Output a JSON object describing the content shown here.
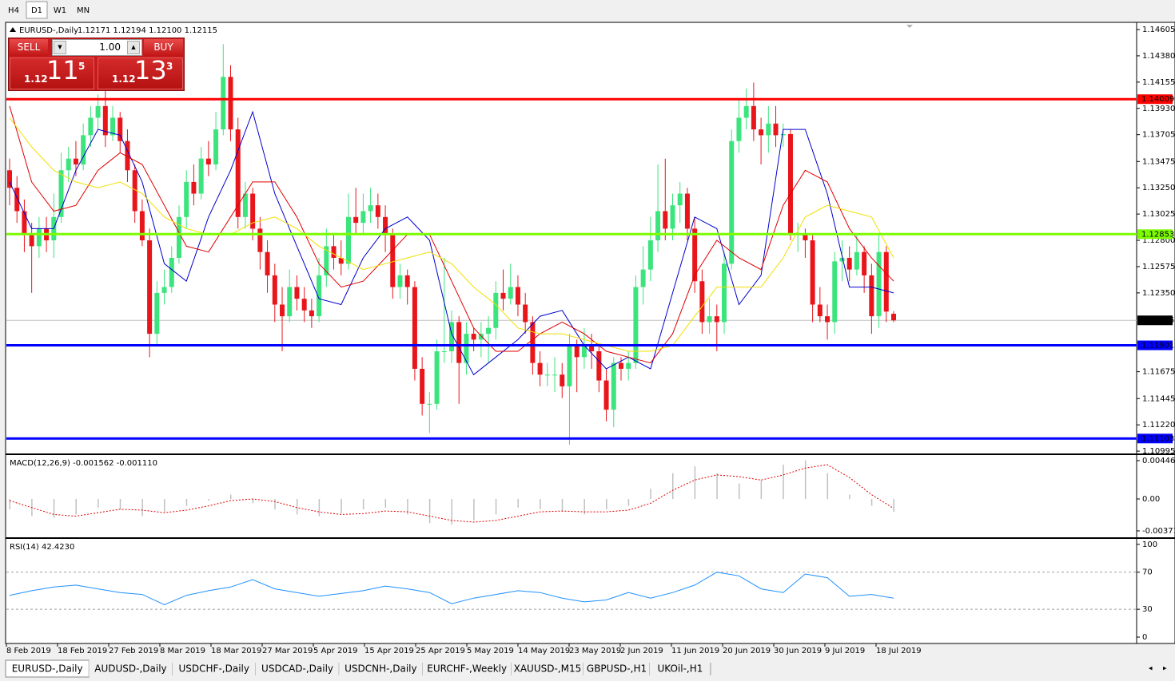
{
  "toolbar": {
    "buttons": [
      "H4",
      "D1",
      "W1",
      "MN"
    ],
    "active": "D1"
  },
  "trade_panel": {
    "sell": "SELL",
    "buy": "BUY",
    "lot": "1.00",
    "bid": {
      "big": "1.12",
      "main": "11",
      "small": "5"
    },
    "ask": {
      "big": "1.12",
      "main": "13",
      "small": "3"
    }
  },
  "chart_data": [
    {
      "type": "candlestick",
      "title": "EURUSD-,Daily",
      "ohlc_label": "1.12171 1.12194 1.12100 1.12115",
      "up_color": "#3ce47d",
      "down_color": "#e8151b",
      "ylim": [
        1.10975,
        1.14653
      ],
      "yticks": [
        1.14605,
        {
          "value": 1.1438,
          "label": "1.14380"
        },
        1.14155,
        {
          "value": 1.1393,
          "label": "1.13930"
        },
        1.13705,
        1.13475,
        {
          "value": 1.1325,
          "label": "1.13250"
        },
        1.13025,
        {
          "value": 1.128,
          "label": "1.12800"
        },
        1.12575,
        {
          "value": 1.1235,
          "label": "1.12350"
        },
        1.11675,
        1.11445,
        {
          "value": 1.1122,
          "label": "1.11220"
        },
        1.10995
      ],
      "levels": [
        {
          "value": 1.14009,
          "color": "#ff0000"
        },
        {
          "value": 1.12853,
          "color": "#7cfc00"
        },
        {
          "value": 1.11901,
          "color": "#0000ff"
        },
        {
          "value": 1.11103,
          "color": "#0000ff"
        }
      ],
      "current_price": 1.12115,
      "date_labels": [
        "8 Feb 2019",
        "18 Feb 2019",
        "27 Feb 2019",
        "8 Mar 2019",
        "18 Mar 2019",
        "27 Mar 2019",
        "5 Apr 2019",
        "15 Apr 2019",
        "25 Apr 2019",
        "5 May 2019",
        "14 May 2019",
        "23 May 2019",
        "2 Jun 2019",
        "11 Jun 2019",
        "20 Jun 2019",
        "30 Jun 2019",
        "9 Jul 2019",
        "18 Jul 2019"
      ],
      "ohlc": [
        [
          1.134,
          1.135,
          1.131,
          1.1325
        ],
        [
          1.1325,
          1.1335,
          1.1295,
          1.1305
        ],
        [
          1.1305,
          1.1315,
          1.127,
          1.1285
        ],
        [
          1.1285,
          1.1295,
          1.1235,
          1.1275
        ],
        [
          1.1275,
          1.13,
          1.1265,
          1.129
        ],
        [
          1.129,
          1.13,
          1.127,
          1.128
        ],
        [
          1.128,
          1.132,
          1.1265,
          1.13
        ],
        [
          1.13,
          1.1355,
          1.1295,
          1.134
        ],
        [
          1.134,
          1.136,
          1.133,
          1.135
        ],
        [
          1.135,
          1.1365,
          1.1335,
          1.1345
        ],
        [
          1.1345,
          1.138,
          1.134,
          1.137
        ],
        [
          1.137,
          1.1395,
          1.136,
          1.1385
        ],
        [
          1.1385,
          1.1405,
          1.1375,
          1.1395
        ],
        [
          1.1395,
          1.141,
          1.136,
          1.137
        ],
        [
          1.137,
          1.1395,
          1.1365,
          1.1385
        ],
        [
          1.1385,
          1.139,
          1.1355,
          1.1365
        ],
        [
          1.1365,
          1.1375,
          1.133,
          1.134
        ],
        [
          1.134,
          1.1345,
          1.1295,
          1.1305
        ],
        [
          1.1305,
          1.1315,
          1.1275,
          1.128
        ],
        [
          1.128,
          1.129,
          1.118,
          1.12
        ],
        [
          1.12,
          1.1245,
          1.119,
          1.1235
        ],
        [
          1.1235,
          1.1255,
          1.1225,
          1.124
        ],
        [
          1.124,
          1.1275,
          1.1235,
          1.1265
        ],
        [
          1.1265,
          1.131,
          1.126,
          1.13
        ],
        [
          1.13,
          1.134,
          1.129,
          1.133
        ],
        [
          1.133,
          1.1345,
          1.131,
          1.132
        ],
        [
          1.132,
          1.136,
          1.1315,
          1.135
        ],
        [
          1.135,
          1.1365,
          1.1335,
          1.1345
        ],
        [
          1.1345,
          1.139,
          1.134,
          1.1375
        ],
        [
          1.1375,
          1.1448,
          1.137,
          1.142
        ],
        [
          1.142,
          1.143,
          1.1365,
          1.1375
        ],
        [
          1.1375,
          1.1385,
          1.129,
          1.13
        ],
        [
          1.13,
          1.133,
          1.129,
          1.132
        ],
        [
          1.132,
          1.1325,
          1.128,
          1.129
        ],
        [
          1.129,
          1.13,
          1.1255,
          1.127
        ],
        [
          1.127,
          1.128,
          1.1235,
          1.125
        ],
        [
          1.125,
          1.126,
          1.121,
          1.1225
        ],
        [
          1.1225,
          1.124,
          1.1185,
          1.1215
        ],
        [
          1.1215,
          1.1255,
          1.121,
          1.124
        ],
        [
          1.124,
          1.125,
          1.122,
          1.123
        ],
        [
          1.123,
          1.124,
          1.121,
          1.122
        ],
        [
          1.122,
          1.123,
          1.1205,
          1.1215
        ],
        [
          1.1215,
          1.1265,
          1.121,
          1.125
        ],
        [
          1.125,
          1.129,
          1.124,
          1.1275
        ],
        [
          1.1275,
          1.1285,
          1.1255,
          1.1265
        ],
        [
          1.1265,
          1.128,
          1.125,
          1.126
        ],
        [
          1.126,
          1.132,
          1.1255,
          1.13
        ],
        [
          1.13,
          1.1325,
          1.1285,
          1.1295
        ],
        [
          1.1295,
          1.132,
          1.1285,
          1.1305
        ],
        [
          1.1305,
          1.1325,
          1.1295,
          1.131
        ],
        [
          1.131,
          1.132,
          1.129,
          1.13
        ],
        [
          1.13,
          1.131,
          1.127,
          1.1285
        ],
        [
          1.1285,
          1.129,
          1.123,
          1.124
        ],
        [
          1.124,
          1.126,
          1.123,
          1.125
        ],
        [
          1.125,
          1.1255,
          1.1225,
          1.124
        ],
        [
          1.124,
          1.1245,
          1.116,
          1.117
        ],
        [
          1.117,
          1.118,
          1.113,
          1.114
        ],
        [
          1.114,
          1.115,
          1.1115,
          1.114
        ],
        [
          1.114,
          1.1195,
          1.1135,
          1.1185
        ],
        [
          1.1185,
          1.1265,
          1.1175,
          1.1185
        ],
        [
          1.1185,
          1.122,
          1.1175,
          1.121
        ],
        [
          1.121,
          1.1215,
          1.114,
          1.1175
        ],
        [
          1.1175,
          1.121,
          1.1165,
          1.12
        ],
        [
          1.12,
          1.1205,
          1.1185,
          1.1195
        ],
        [
          1.1195,
          1.121,
          1.118,
          1.12
        ],
        [
          1.12,
          1.1215,
          1.1175,
          1.1205
        ],
        [
          1.1205,
          1.1245,
          1.1195,
          1.1235
        ],
        [
          1.1235,
          1.1255,
          1.122,
          1.123
        ],
        [
          1.123,
          1.126,
          1.1225,
          1.124
        ],
        [
          1.124,
          1.125,
          1.1215,
          1.1225
        ],
        [
          1.1225,
          1.1235,
          1.12,
          1.121
        ],
        [
          1.121,
          1.1215,
          1.1165,
          1.1175
        ],
        [
          1.1175,
          1.1185,
          1.1155,
          1.1165
        ],
        [
          1.1165,
          1.1175,
          1.1155,
          1.1165
        ],
        [
          1.1165,
          1.118,
          1.115,
          1.1165
        ],
        [
          1.1165,
          1.1175,
          1.1145,
          1.1155
        ],
        [
          1.1155,
          1.12,
          1.1105,
          1.119
        ],
        [
          1.119,
          1.1195,
          1.115,
          1.118
        ],
        [
          1.118,
          1.1205,
          1.117,
          1.119
        ],
        [
          1.119,
          1.12,
          1.117,
          1.1185
        ],
        [
          1.1185,
          1.119,
          1.115,
          1.116
        ],
        [
          1.116,
          1.117,
          1.1125,
          1.1135
        ],
        [
          1.1135,
          1.118,
          1.112,
          1.1175
        ],
        [
          1.1175,
          1.118,
          1.116,
          1.117
        ],
        [
          1.117,
          1.1185,
          1.116,
          1.1175
        ],
        [
          1.1175,
          1.125,
          1.117,
          1.124
        ],
        [
          1.124,
          1.1275,
          1.1225,
          1.1255
        ],
        [
          1.1255,
          1.13,
          1.1245,
          1.128
        ],
        [
          1.128,
          1.1345,
          1.127,
          1.1305
        ],
        [
          1.1305,
          1.135,
          1.128,
          1.129
        ],
        [
          1.129,
          1.132,
          1.128,
          1.131
        ],
        [
          1.131,
          1.133,
          1.1295,
          1.132
        ],
        [
          1.132,
          1.1325,
          1.128,
          1.129
        ],
        [
          1.129,
          1.13,
          1.1235,
          1.1245
        ],
        [
          1.1245,
          1.1255,
          1.12,
          1.121
        ],
        [
          1.121,
          1.123,
          1.12,
          1.1215
        ],
        [
          1.1215,
          1.1225,
          1.1185,
          1.121
        ],
        [
          1.121,
          1.127,
          1.12,
          1.126
        ],
        [
          1.126,
          1.1375,
          1.1255,
          1.1365
        ],
        [
          1.1365,
          1.14,
          1.1355,
          1.1385
        ],
        [
          1.1385,
          1.141,
          1.1375,
          1.1395
        ],
        [
          1.1395,
          1.1415,
          1.1365,
          1.1375
        ],
        [
          1.1375,
          1.1385,
          1.1345,
          1.137
        ],
        [
          1.137,
          1.1395,
          1.1355,
          1.138
        ],
        [
          1.138,
          1.1395,
          1.136,
          1.137
        ],
        [
          1.137,
          1.138,
          1.136,
          1.1371
        ],
        [
          1.1371,
          1.1375,
          1.128,
          1.1285
        ],
        [
          1.1285,
          1.1295,
          1.127,
          1.1286
        ],
        [
          1.1286,
          1.129,
          1.1265,
          1.128
        ],
        [
          1.128,
          1.1285,
          1.121,
          1.1225
        ],
        [
          1.1225,
          1.124,
          1.121,
          1.1215
        ],
        [
          1.1215,
          1.1225,
          1.1195,
          1.121
        ],
        [
          1.121,
          1.127,
          1.12,
          1.1262
        ],
        [
          1.1262,
          1.128,
          1.1245,
          1.1265
        ],
        [
          1.1265,
          1.1275,
          1.1245,
          1.1255
        ],
        [
          1.1255,
          1.1285,
          1.125,
          1.127
        ],
        [
          1.127,
          1.1275,
          1.1235,
          1.125
        ],
        [
          1.125,
          1.126,
          1.12,
          1.1215
        ],
        [
          1.1215,
          1.1285,
          1.1205,
          1.127
        ],
        [
          1.127,
          1.1275,
          1.121,
          1.1219
        ],
        [
          1.12171,
          1.12194,
          1.121,
          1.12115
        ]
      ],
      "series": [
        {
          "color": "#0000cd",
          "values": [
            1.133,
            1.129,
            1.129,
            1.134,
            1.1375,
            1.137,
            1.133,
            1.126,
            1.1245,
            1.13,
            1.134,
            1.139,
            1.132,
            1.1275,
            1.123,
            1.1225,
            1.1265,
            1.129,
            1.13,
            1.128,
            1.12,
            1.1165,
            1.118,
            1.1195,
            1.1215,
            1.122,
            1.119,
            1.117,
            1.118,
            1.117,
            1.1235,
            1.13,
            1.129,
            1.1225,
            1.125,
            1.1375,
            1.1375,
            1.132,
            1.124,
            1.124,
            1.1235
          ]
        },
        {
          "color": "#e00000",
          "values": [
            1.1395,
            1.133,
            1.1305,
            1.131,
            1.134,
            1.1355,
            1.1345,
            1.131,
            1.1275,
            1.127,
            1.13,
            1.133,
            1.133,
            1.13,
            1.126,
            1.124,
            1.1245,
            1.1265,
            1.1285,
            1.1285,
            1.1245,
            1.1205,
            1.1185,
            1.1185,
            1.12,
            1.121,
            1.12,
            1.1185,
            1.118,
            1.1175,
            1.12,
            1.125,
            1.128,
            1.1265,
            1.1255,
            1.131,
            1.134,
            1.133,
            1.129,
            1.1265,
            1.1245
          ]
        },
        {
          "color": "#f0e000",
          "values": [
            1.1385,
            1.136,
            1.134,
            1.133,
            1.1325,
            1.133,
            1.132,
            1.13,
            1.129,
            1.1285,
            1.1285,
            1.1295,
            1.13,
            1.129,
            1.1275,
            1.1265,
            1.1255,
            1.126,
            1.1265,
            1.127,
            1.126,
            1.124,
            1.1225,
            1.1205,
            1.12,
            1.12,
            1.1195,
            1.119,
            1.1185,
            1.1185,
            1.119,
            1.1215,
            1.124,
            1.124,
            1.124,
            1.1265,
            1.13,
            1.131,
            1.1305,
            1.13,
            1.1265
          ]
        }
      ]
    },
    {
      "type": "macd",
      "title": "MACD(12,26,9) -0.001562 -0.001110",
      "ylim": [
        -0.00437,
        0.00502
      ],
      "yticks": [
        0.004465,
        {
          "value": 0,
          "label": "0.00"
        },
        -0.003715
      ],
      "series": [
        {
          "type": "bar",
          "color": "#c0c0c0",
          "values": [
            -0.0012,
            -0.002,
            -0.0022,
            -0.0018,
            -0.001,
            -0.0012,
            -0.002,
            -0.0015,
            -0.0008,
            -0.0002,
            0.0005,
            -0.0005,
            -0.0012,
            -0.0018,
            -0.002,
            -0.0017,
            -0.0012,
            -0.001,
            -0.0018,
            -0.0028,
            -0.003,
            -0.0025,
            -0.0018,
            -0.001,
            -0.0012,
            -0.0015,
            -0.0018,
            -0.0012,
            -0.0008,
            0.0012,
            0.003,
            0.0038,
            0.003,
            0.0018,
            0.0022,
            0.004,
            0.0045,
            0.003,
            0.0005,
            -0.0008,
            -0.0015
          ]
        },
        {
          "type": "line",
          "color": "#e00000",
          "values": [
            -0.0002,
            -0.001,
            -0.0018,
            -0.002,
            -0.0016,
            -0.0012,
            -0.0013,
            -0.0016,
            -0.0013,
            -0.0008,
            -0.0002,
            0,
            -0.0003,
            -0.001,
            -0.0015,
            -0.0018,
            -0.0017,
            -0.0014,
            -0.0015,
            -0.002,
            -0.0025,
            -0.0027,
            -0.0025,
            -0.002,
            -0.0015,
            -0.0014,
            -0.0015,
            -0.0015,
            -0.0013,
            -0.0005,
            0.001,
            0.0022,
            0.0028,
            0.0026,
            0.0022,
            0.0028,
            0.0036,
            0.004,
            0.0025,
            0.0005,
            -0.0011
          ]
        }
      ]
    },
    {
      "type": "line",
      "title": "RSI(14) 42.4230",
      "ylim": [
        -6,
        105
      ],
      "yticks": [
        0,
        30,
        70,
        100
      ],
      "levels": [
        30,
        70
      ],
      "series": [
        {
          "color": "#1e90ff",
          "values": [
            45,
            50,
            54,
            56,
            52,
            48,
            46,
            35,
            45,
            50,
            54,
            62,
            52,
            48,
            44,
            47,
            50,
            55,
            52,
            48,
            36,
            42,
            46,
            50,
            48,
            42,
            38,
            40,
            48,
            42,
            48,
            56,
            70,
            66,
            52,
            48,
            68,
            64,
            44,
            46,
            42
          ]
        }
      ]
    }
  ],
  "tabs": [
    "EURUSD-,Daily",
    "AUDUSD-,Daily",
    "USDCHF-,Daily",
    "USDCAD-,Daily",
    "USDCNH-,Daily",
    "EURCHF-,Weekly",
    "XAUUSD-,M15",
    "GBPUSD-,H1",
    "UKOil-,H1"
  ],
  "active_tab": "EURUSD-,Daily"
}
